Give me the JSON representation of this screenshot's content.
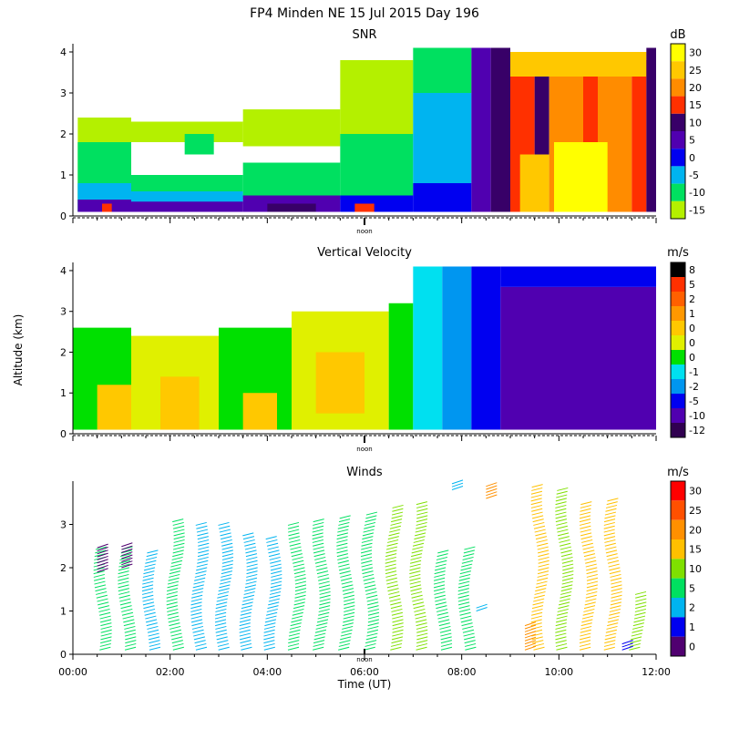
{
  "figure_title": "FP4 Minden NE  15 Jul 2015 Day 196",
  "y_axis_label": "Altitude (km)",
  "x_axis_label": "Time (UT)",
  "noon_label": "noon",
  "chart_data": [
    {
      "type": "heatmap",
      "title": "SNR",
      "colorbar_unit": "dB",
      "colorbar_labels": [
        "30",
        "25",
        "20",
        "15",
        "10",
        "5",
        "0",
        "-5",
        "-10",
        "-15"
      ],
      "colorbar_colors": [
        "#ffff00",
        "#ffc800",
        "#ff8c00",
        "#ff3000",
        "#380068",
        "#5000b0",
        "#0000f0",
        "#00b4f0",
        "#00e060",
        "#b4f000"
      ],
      "y_ticks": [
        "0",
        "1",
        "2",
        "3",
        "4"
      ],
      "ylim": [
        0,
        4.2
      ],
      "xlim_hours": [
        0,
        12
      ],
      "noon_local_hour": 6.0,
      "regions": [
        {
          "t": [
            0.1,
            1.2
          ],
          "z": [
            0.1,
            2.4
          ],
          "c": "#b4f000"
        },
        {
          "t": [
            0.1,
            1.2
          ],
          "z": [
            0.1,
            1.8
          ],
          "c": "#00e060"
        },
        {
          "t": [
            0.1,
            1.2
          ],
          "z": [
            0.1,
            0.8
          ],
          "c": "#00b4f0"
        },
        {
          "t": [
            0.1,
            1.2
          ],
          "z": [
            0.1,
            0.4
          ],
          "c": "#5000b0"
        },
        {
          "t": [
            0.6,
            0.8
          ],
          "z": [
            0.1,
            0.3
          ],
          "c": "#ff3000"
        },
        {
          "t": [
            1.2,
            3.5
          ],
          "z": [
            1.8,
            2.3
          ],
          "c": "#b4f000"
        },
        {
          "t": [
            1.2,
            3.5
          ],
          "z": [
            0.5,
            1.0
          ],
          "c": "#00e060"
        },
        {
          "t": [
            1.2,
            3.5
          ],
          "z": [
            0.3,
            0.6
          ],
          "c": "#00b4f0"
        },
        {
          "t": [
            1.2,
            3.5
          ],
          "z": [
            0.1,
            0.35
          ],
          "c": "#5000b0"
        },
        {
          "t": [
            2.3,
            2.9
          ],
          "z": [
            1.5,
            2.0
          ],
          "c": "#00e060"
        },
        {
          "t": [
            3.5,
            5.5
          ],
          "z": [
            1.7,
            2.6
          ],
          "c": "#b4f000"
        },
        {
          "t": [
            3.5,
            5.5
          ],
          "z": [
            0.4,
            1.3
          ],
          "c": "#00e060"
        },
        {
          "t": [
            3.5,
            5.5
          ],
          "z": [
            0.1,
            0.5
          ],
          "c": "#5000b0"
        },
        {
          "t": [
            4.0,
            5.0
          ],
          "z": [
            0.1,
            0.3
          ],
          "c": "#380068"
        },
        {
          "t": [
            5.5,
            7.0
          ],
          "z": [
            2.0,
            3.8
          ],
          "c": "#b4f000"
        },
        {
          "t": [
            5.5,
            7.0
          ],
          "z": [
            0.5,
            2.0
          ],
          "c": "#00e060"
        },
        {
          "t": [
            5.5,
            7.0
          ],
          "z": [
            0.1,
            0.5
          ],
          "c": "#0000f0"
        },
        {
          "t": [
            5.8,
            6.2
          ],
          "z": [
            0.1,
            0.3
          ],
          "c": "#ff3000"
        },
        {
          "t": [
            7.0,
            8.2
          ],
          "z": [
            3.0,
            4.1
          ],
          "c": "#00e060"
        },
        {
          "t": [
            7.0,
            8.2
          ],
          "z": [
            0.8,
            3.0
          ],
          "c": "#00b4f0"
        },
        {
          "t": [
            7.0,
            8.2
          ],
          "z": [
            0.1,
            0.8
          ],
          "c": "#0000f0"
        },
        {
          "t": [
            8.2,
            8.6
          ],
          "z": [
            0.1,
            4.1
          ],
          "c": "#5000b0"
        },
        {
          "t": [
            8.6,
            9.0
          ],
          "z": [
            0.1,
            4.1
          ],
          "c": "#380068"
        },
        {
          "t": [
            9.0,
            9.5
          ],
          "z": [
            0.1,
            3.8
          ],
          "c": "#ff3000"
        },
        {
          "t": [
            9.5,
            9.8
          ],
          "z": [
            0.1,
            3.8
          ],
          "c": "#380068"
        },
        {
          "t": [
            9.8,
            10.5
          ],
          "z": [
            0.1,
            3.8
          ],
          "c": "#ff8c00"
        },
        {
          "t": [
            10.5,
            10.8
          ],
          "z": [
            0.1,
            3.8
          ],
          "c": "#ff3000"
        },
        {
          "t": [
            10.8,
            11.5
          ],
          "z": [
            0.1,
            3.8
          ],
          "c": "#ff8c00"
        },
        {
          "t": [
            11.5,
            11.8
          ],
          "z": [
            0.1,
            3.8
          ],
          "c": "#ff3000"
        },
        {
          "t": [
            9.0,
            11.8
          ],
          "z": [
            3.4,
            4.0
          ],
          "c": "#ffc800"
        },
        {
          "t": [
            9.2,
            9.8
          ],
          "z": [
            0.1,
            1.5
          ],
          "c": "#ffc800"
        },
        {
          "t": [
            9.9,
            11.0
          ],
          "z": [
            0.1,
            1.8
          ],
          "c": "#ffff00"
        },
        {
          "t": [
            11.8,
            12.0
          ],
          "z": [
            0.1,
            4.1
          ],
          "c": "#380068"
        }
      ]
    },
    {
      "type": "heatmap",
      "title": "Vertical Velocity",
      "colorbar_unit": "m/s",
      "colorbar_labels": [
        "8",
        "5",
        "2",
        "1",
        "0",
        "0",
        "0",
        "-1",
        "-2",
        "-5",
        "-10",
        "-12"
      ],
      "colorbar_colors": [
        "#000000",
        "#ff3000",
        "#ff6000",
        "#ff9800",
        "#ffc800",
        "#e0f000",
        "#00e000",
        "#00e0f0",
        "#0096f0",
        "#0000f0",
        "#5000b0",
        "#300050"
      ],
      "y_ticks": [
        "0",
        "1",
        "2",
        "3",
        "4"
      ],
      "ylim": [
        0,
        4.2
      ],
      "xlim_hours": [
        0,
        12
      ],
      "noon_local_hour": 6.0,
      "regions": [
        {
          "t": [
            0.0,
            1.2
          ],
          "z": [
            0.1,
            2.6
          ],
          "c": "#00e000"
        },
        {
          "t": [
            0.5,
            1.2
          ],
          "z": [
            0.1,
            1.2
          ],
          "c": "#ffc800"
        },
        {
          "t": [
            1.2,
            3.0
          ],
          "z": [
            0.1,
            2.4
          ],
          "c": "#e0f000"
        },
        {
          "t": [
            1.8,
            2.6
          ],
          "z": [
            0.1,
            1.4
          ],
          "c": "#ffc800"
        },
        {
          "t": [
            3.0,
            4.5
          ],
          "z": [
            0.1,
            2.6
          ],
          "c": "#00e000"
        },
        {
          "t": [
            3.5,
            4.2
          ],
          "z": [
            0.1,
            1.0
          ],
          "c": "#ffc800"
        },
        {
          "t": [
            4.5,
            6.5
          ],
          "z": [
            0.1,
            3.0
          ],
          "c": "#e0f000"
        },
        {
          "t": [
            5.0,
            6.0
          ],
          "z": [
            0.5,
            2.0
          ],
          "c": "#ffc800"
        },
        {
          "t": [
            6.5,
            7.0
          ],
          "z": [
            0.1,
            3.2
          ],
          "c": "#00e000"
        },
        {
          "t": [
            7.0,
            7.6
          ],
          "z": [
            0.1,
            4.1
          ],
          "c": "#00e0f0"
        },
        {
          "t": [
            7.6,
            8.2
          ],
          "z": [
            0.1,
            4.1
          ],
          "c": "#0096f0"
        },
        {
          "t": [
            8.2,
            8.8
          ],
          "z": [
            0.1,
            4.1
          ],
          "c": "#0000f0"
        },
        {
          "t": [
            8.8,
            12.0
          ],
          "z": [
            0.1,
            3.6
          ],
          "c": "#5000b0"
        },
        {
          "t": [
            8.8,
            12.0
          ],
          "z": [
            3.6,
            4.1
          ],
          "c": "#0000f0"
        }
      ]
    },
    {
      "type": "wind_barbs",
      "title": "Winds",
      "colorbar_unit": "m/s",
      "colorbar_labels": [
        "30",
        "25",
        "20",
        "15",
        "10",
        "5",
        "2",
        "1",
        "0"
      ],
      "colorbar_colors": [
        "#ff0000",
        "#ff5000",
        "#ff9000",
        "#ffc000",
        "#7fe000",
        "#00e060",
        "#00b4f0",
        "#0000f0",
        "#500070"
      ],
      "y_ticks": [
        "0",
        "1",
        "2",
        "3"
      ],
      "ylim": [
        0,
        4.0
      ],
      "xlim_hours": [
        0,
        12
      ],
      "noon_local_hour": 6.0,
      "x_ticks": [
        "00:00",
        "02:00",
        "04:00",
        "06:00",
        "08:00",
        "10:00",
        "12:00"
      ],
      "columns": [
        {
          "t": 0.5,
          "top": 2.5,
          "c": "#00e060"
        },
        {
          "t": 1.0,
          "top": 2.5,
          "c": "#00e060"
        },
        {
          "t": 1.5,
          "top": 2.4,
          "c": "#00b4f0"
        },
        {
          "t": 2.0,
          "top": 3.1,
          "c": "#00e060"
        },
        {
          "t": 2.5,
          "top": 3.0,
          "c": "#00b4f0"
        },
        {
          "t": 3.0,
          "top": 3.0,
          "c": "#00b4f0"
        },
        {
          "t": 3.5,
          "top": 2.8,
          "c": "#00b4f0"
        },
        {
          "t": 4.0,
          "top": 2.7,
          "c": "#00b4f0"
        },
        {
          "t": 4.5,
          "top": 3.0,
          "c": "#00e060"
        },
        {
          "t": 5.0,
          "top": 3.1,
          "c": "#00e060"
        },
        {
          "t": 5.5,
          "top": 3.2,
          "c": "#00e060"
        },
        {
          "t": 6.0,
          "top": 3.3,
          "c": "#00e060"
        },
        {
          "t": 6.5,
          "top": 3.4,
          "c": "#7fe000"
        },
        {
          "t": 7.0,
          "top": 3.5,
          "c": "#7fe000"
        },
        {
          "t": 7.5,
          "top": 2.4,
          "c": "#00e060"
        },
        {
          "t": 8.0,
          "top": 2.5,
          "c": "#00e060"
        },
        {
          "t": 9.5,
          "top": 3.9,
          "c": "#ffc000"
        },
        {
          "t": 10.0,
          "top": 3.8,
          "c": "#7fe000"
        },
        {
          "t": 10.5,
          "top": 3.5,
          "c": "#ffc000"
        },
        {
          "t": 11.0,
          "top": 3.6,
          "c": "#ffc000"
        },
        {
          "t": 11.5,
          "top": 1.4,
          "c": "#7fe000"
        }
      ],
      "features": [
        {
          "t": 0.5,
          "z": [
            1.9,
            2.5
          ],
          "c": "#500070"
        },
        {
          "t": 1.0,
          "z": [
            2.0,
            2.5
          ],
          "c": "#500070"
        },
        {
          "t": 7.8,
          "z": [
            3.8,
            4.0
          ],
          "c": "#00b4f0"
        },
        {
          "t": 8.5,
          "z": [
            3.6,
            3.9
          ],
          "c": "#ff9000"
        },
        {
          "t": 8.3,
          "z": [
            1.0,
            1.1
          ],
          "c": "#00b4f0"
        },
        {
          "t": 9.3,
          "z": [
            0.1,
            0.7
          ],
          "c": "#ff9000"
        },
        {
          "t": 11.3,
          "z": [
            0.1,
            0.3
          ],
          "c": "#0000f0"
        }
      ]
    }
  ]
}
